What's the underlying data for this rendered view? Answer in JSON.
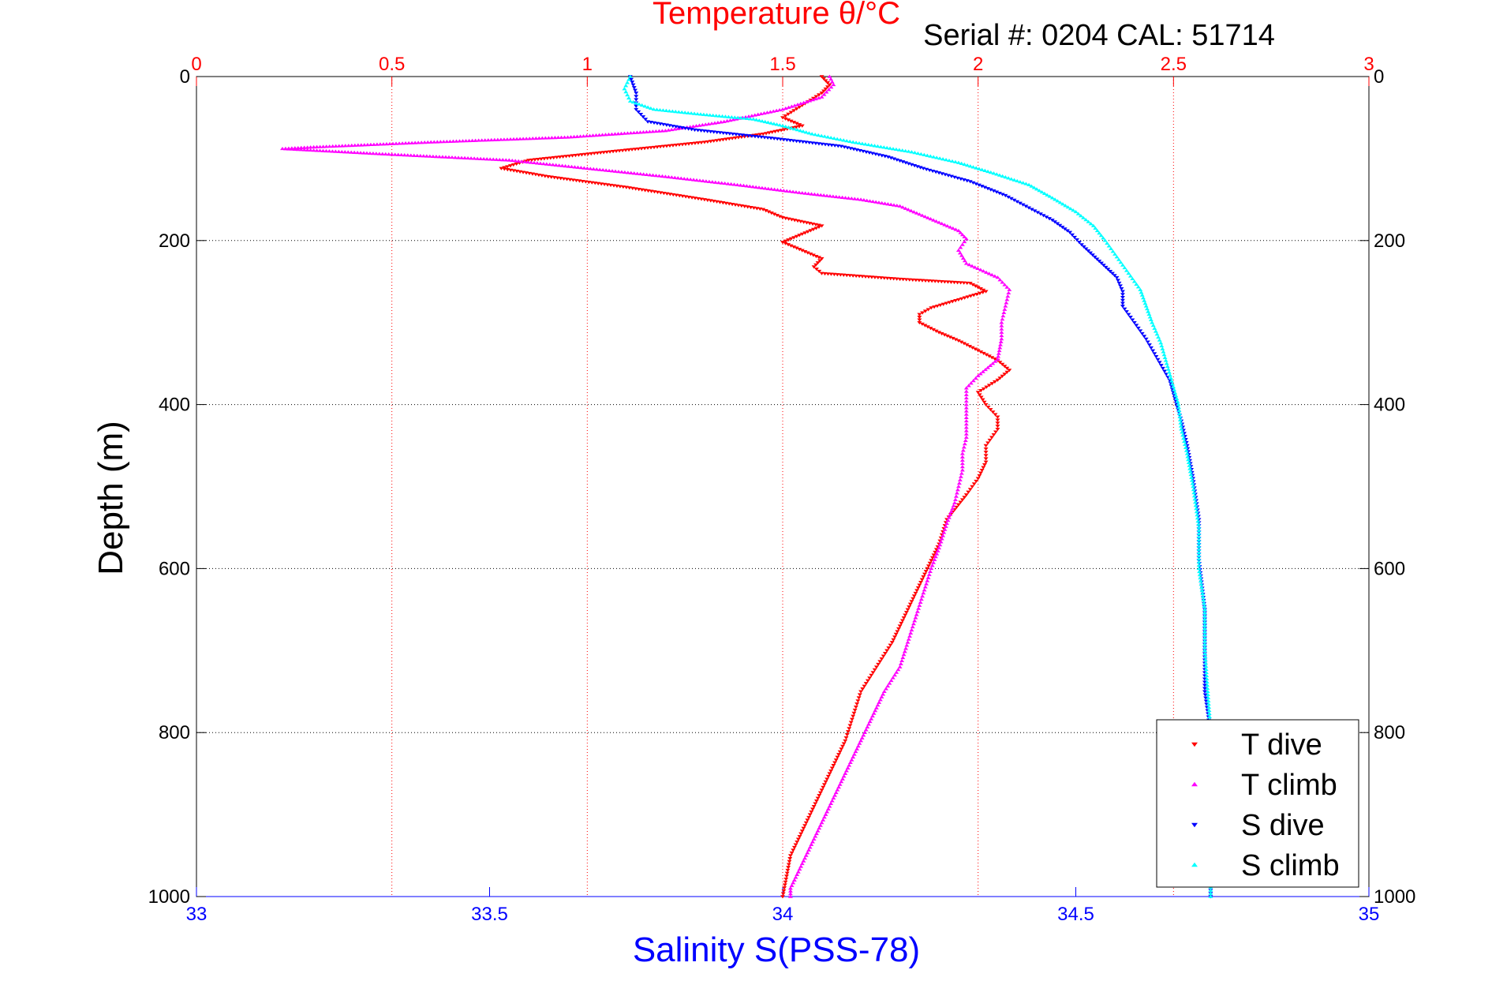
{
  "header": {
    "serial_text": "Serial #: 0204  CAL: 51714"
  },
  "chart_data": {
    "type": "scatter",
    "title": "Temperature θ/°C",
    "top_axis": {
      "label": "Temperature θ/°C",
      "range": [
        0,
        3
      ],
      "ticks": [
        0,
        0.5,
        1,
        1.5,
        2,
        2.5,
        3
      ],
      "tick_labels": [
        "0",
        "0.5",
        "1",
        "1.5",
        "2",
        "2.5",
        "3"
      ],
      "color": "#ff0000"
    },
    "bottom_axis": {
      "label": "Salinity S(PSS-78)",
      "range": [
        33,
        35
      ],
      "ticks": [
        33,
        33.5,
        34,
        34.5,
        35
      ],
      "tick_labels": [
        "33",
        "33.5",
        "34",
        "34.5",
        "35"
      ],
      "color": "#0000ff"
    },
    "y_axis": {
      "label": "Depth (m)",
      "range": [
        0,
        1000
      ],
      "reversed": true,
      "ticks": [
        0,
        200,
        400,
        600,
        800,
        1000
      ],
      "tick_labels": [
        "0",
        "200",
        "400",
        "600",
        "800",
        "1000"
      ]
    },
    "grid": true,
    "legend": {
      "position": "bottom-right"
    },
    "series": [
      {
        "name": "T dive",
        "axis": "temperature",
        "color": "#ff0000",
        "marker": "triangle-down",
        "points": [
          [
            1.6,
            0
          ],
          [
            1.62,
            10
          ],
          [
            1.6,
            20
          ],
          [
            1.55,
            35
          ],
          [
            1.5,
            50
          ],
          [
            1.55,
            60
          ],
          [
            1.45,
            70
          ],
          [
            1.3,
            80
          ],
          [
            1.05,
            92
          ],
          [
            0.85,
            102
          ],
          [
            0.78,
            112
          ],
          [
            0.9,
            122
          ],
          [
            1.1,
            135
          ],
          [
            1.3,
            150
          ],
          [
            1.45,
            162
          ],
          [
            1.5,
            172
          ],
          [
            1.6,
            182
          ],
          [
            1.55,
            192
          ],
          [
            1.5,
            202
          ],
          [
            1.55,
            212
          ],
          [
            1.6,
            222
          ],
          [
            1.58,
            232
          ],
          [
            1.6,
            240
          ],
          [
            1.8,
            247
          ],
          [
            1.98,
            252
          ],
          [
            2.02,
            262
          ],
          [
            1.95,
            272
          ],
          [
            1.88,
            282
          ],
          [
            1.85,
            290
          ],
          [
            1.85,
            300
          ],
          [
            1.9,
            312
          ],
          [
            1.95,
            322
          ],
          [
            2.0,
            334
          ],
          [
            2.05,
            346
          ],
          [
            2.08,
            358
          ],
          [
            2.05,
            370
          ],
          [
            2.0,
            385
          ],
          [
            2.02,
            400
          ],
          [
            2.05,
            415
          ],
          [
            2.05,
            430
          ],
          [
            2.02,
            450
          ],
          [
            2.02,
            470
          ],
          [
            2.0,
            490
          ],
          [
            1.97,
            510
          ],
          [
            1.92,
            540
          ],
          [
            1.9,
            570
          ],
          [
            1.88,
            590
          ],
          [
            1.85,
            620
          ],
          [
            1.82,
            650
          ],
          [
            1.78,
            690
          ],
          [
            1.74,
            720
          ],
          [
            1.7,
            750
          ],
          [
            1.68,
            780
          ],
          [
            1.66,
            810
          ],
          [
            1.62,
            850
          ],
          [
            1.58,
            890
          ],
          [
            1.55,
            920
          ],
          [
            1.52,
            950
          ],
          [
            1.51,
            975
          ],
          [
            1.5,
            1000
          ]
        ]
      },
      {
        "name": "T climb",
        "axis": "temperature",
        "color": "#ff00ff",
        "marker": "triangle-up",
        "points": [
          [
            1.62,
            0
          ],
          [
            1.63,
            10
          ],
          [
            1.6,
            25
          ],
          [
            1.5,
            40
          ],
          [
            1.35,
            55
          ],
          [
            1.2,
            66
          ],
          [
            0.95,
            74
          ],
          [
            0.6,
            80
          ],
          [
            0.3,
            86
          ],
          [
            0.22,
            88
          ],
          [
            0.5,
            95
          ],
          [
            0.8,
            102
          ],
          [
            1.0,
            112
          ],
          [
            1.2,
            122
          ],
          [
            1.4,
            133
          ],
          [
            1.55,
            142
          ],
          [
            1.7,
            150
          ],
          [
            1.8,
            158
          ],
          [
            1.85,
            168
          ],
          [
            1.9,
            178
          ],
          [
            1.95,
            188
          ],
          [
            1.97,
            198
          ],
          [
            1.95,
            212
          ],
          [
            1.97,
            228
          ],
          [
            2.05,
            245
          ],
          [
            2.08,
            260
          ],
          [
            2.07,
            280
          ],
          [
            2.06,
            300
          ],
          [
            2.06,
            320
          ],
          [
            2.05,
            345
          ],
          [
            2.0,
            365
          ],
          [
            1.97,
            380
          ],
          [
            1.97,
            400
          ],
          [
            1.97,
            420
          ],
          [
            1.97,
            440
          ],
          [
            1.96,
            460
          ],
          [
            1.96,
            480
          ],
          [
            1.95,
            500
          ],
          [
            1.94,
            520
          ],
          [
            1.92,
            545
          ],
          [
            1.9,
            575
          ],
          [
            1.88,
            600
          ],
          [
            1.86,
            630
          ],
          [
            1.84,
            660
          ],
          [
            1.82,
            690
          ],
          [
            1.8,
            720
          ],
          [
            1.76,
            750
          ],
          [
            1.73,
            780
          ],
          [
            1.7,
            810
          ],
          [
            1.66,
            850
          ],
          [
            1.62,
            890
          ],
          [
            1.58,
            930
          ],
          [
            1.55,
            960
          ],
          [
            1.52,
            990
          ],
          [
            1.52,
            1000
          ]
        ]
      },
      {
        "name": "S dive",
        "axis": "salinity",
        "color": "#0000ff",
        "marker": "triangle-down",
        "points": [
          [
            33.74,
            0
          ],
          [
            33.75,
            20
          ],
          [
            33.75,
            40
          ],
          [
            33.77,
            55
          ],
          [
            33.85,
            65
          ],
          [
            33.98,
            75
          ],
          [
            34.1,
            85
          ],
          [
            34.18,
            98
          ],
          [
            34.24,
            112
          ],
          [
            34.32,
            128
          ],
          [
            34.38,
            145
          ],
          [
            34.42,
            160
          ],
          [
            34.46,
            175
          ],
          [
            34.49,
            190
          ],
          [
            34.51,
            205
          ],
          [
            34.54,
            225
          ],
          [
            34.57,
            245
          ],
          [
            34.58,
            262
          ],
          [
            34.58,
            280
          ],
          [
            34.6,
            300
          ],
          [
            34.62,
            320
          ],
          [
            34.64,
            345
          ],
          [
            34.66,
            370
          ],
          [
            34.67,
            395
          ],
          [
            34.68,
            420
          ],
          [
            34.69,
            450
          ],
          [
            34.7,
            490
          ],
          [
            34.71,
            540
          ],
          [
            34.71,
            590
          ],
          [
            34.72,
            650
          ],
          [
            34.72,
            700
          ],
          [
            34.72,
            750
          ],
          [
            34.73,
            800
          ],
          [
            34.73,
            850
          ],
          [
            34.73,
            900
          ],
          [
            34.73,
            950
          ],
          [
            34.73,
            1000
          ]
        ]
      },
      {
        "name": "S climb",
        "axis": "salinity",
        "color": "#00ffff",
        "marker": "triangle-up",
        "points": [
          [
            33.74,
            0
          ],
          [
            33.73,
            15
          ],
          [
            33.74,
            30
          ],
          [
            33.78,
            40
          ],
          [
            33.86,
            46
          ],
          [
            33.95,
            52
          ],
          [
            34.0,
            60
          ],
          [
            34.05,
            70
          ],
          [
            34.12,
            80
          ],
          [
            34.22,
            92
          ],
          [
            34.3,
            105
          ],
          [
            34.36,
            118
          ],
          [
            34.42,
            132
          ],
          [
            34.46,
            148
          ],
          [
            34.5,
            165
          ],
          [
            34.53,
            182
          ],
          [
            34.55,
            200
          ],
          [
            34.57,
            220
          ],
          [
            34.59,
            240
          ],
          [
            34.61,
            260
          ],
          [
            34.62,
            280
          ],
          [
            34.63,
            300
          ],
          [
            34.645,
            325
          ],
          [
            34.655,
            350
          ],
          [
            34.665,
            375
          ],
          [
            34.675,
            400
          ],
          [
            34.68,
            430
          ],
          [
            34.69,
            460
          ],
          [
            34.7,
            500
          ],
          [
            34.71,
            550
          ],
          [
            34.71,
            600
          ],
          [
            34.72,
            650
          ],
          [
            34.72,
            700
          ],
          [
            34.725,
            750
          ],
          [
            34.73,
            800
          ],
          [
            34.73,
            850
          ],
          [
            34.73,
            900
          ],
          [
            34.73,
            950
          ],
          [
            34.73,
            1000
          ]
        ]
      }
    ]
  }
}
